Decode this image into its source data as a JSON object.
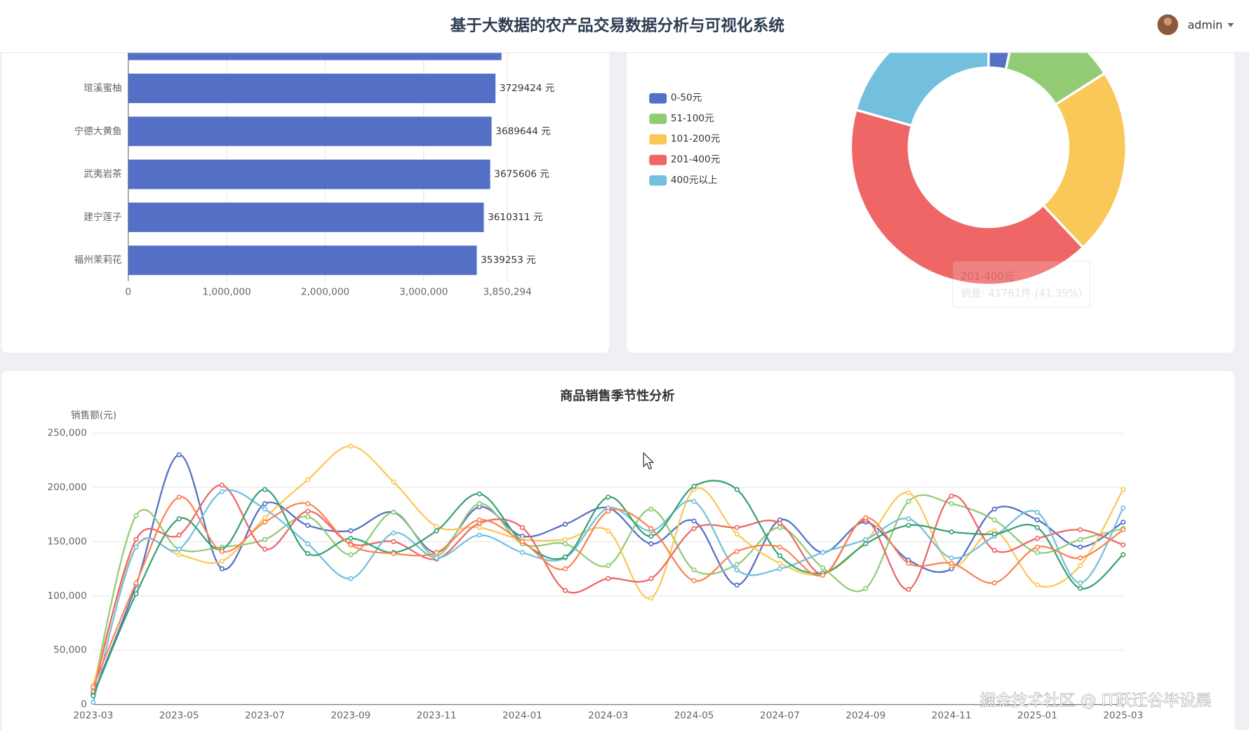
{
  "header": {
    "title": "基于大数据的农产品交易数据分析与可视化系统",
    "user": "admin"
  },
  "chart_data": [
    {
      "type": "bar",
      "orientation": "horizontal",
      "categories": [
        null,
        "琯溪蜜柚",
        "宁德大黄鱼",
        "武夷岩茶",
        "建宁莲子",
        "福州茉莉花"
      ],
      "values": [
        3790000,
        3729424,
        3689644,
        3675606,
        3610311,
        3539253
      ],
      "value_labels": [
        null,
        "3729424 元",
        "3689644 元",
        "3675606 元",
        "3610311 元",
        "3539253 元"
      ],
      "color": "#5470c6",
      "xlim": [
        0,
        3850294
      ],
      "xticks": [
        0,
        {
          "value": 1000000,
          "label": "1,000,000"
        },
        {
          "value": 2000000,
          "label": "2,000,000"
        },
        {
          "value": 3000000,
          "label": "3,000,000"
        },
        {
          "value": 3850294,
          "label": "3,850,294"
        }
      ],
      "grid": true
    },
    {
      "type": "pie",
      "donut": true,
      "categories": [
        "0-50元",
        "51-100元",
        "101-200元",
        "201-400元",
        "400元以上"
      ],
      "values": [
        3500,
        12600,
        22200,
        41761,
        20800
      ],
      "colors": [
        "#5470c6",
        "#91cc75",
        "#fac858",
        "#ee6666",
        "#73c0de"
      ],
      "legend": "left",
      "tooltip": "销量: 41761件 (41.39%)"
    },
    {
      "type": "line",
      "title": "商品销售季节性分析",
      "ylabel": "销售额(元)",
      "smooth": true,
      "grid": true,
      "x": [
        "2023-03",
        null,
        "2023-05",
        null,
        "2023-07",
        null,
        "2023-09",
        null,
        "2023-11",
        null,
        "2024-01",
        null,
        "2024-03",
        null,
        "2024-05",
        null,
        "2024-07",
        null,
        "2024-09",
        null,
        "2024-11",
        null,
        "2025-01",
        null,
        "2025-03"
      ],
      "ylim": [
        0,
        250000
      ],
      "yticks": [
        0,
        {
          "value": 50000,
          "label": "50,000"
        },
        {
          "value": 100000,
          "label": "100,000"
        },
        {
          "value": 150000,
          "label": "150,000"
        },
        {
          "value": 200000,
          "label": "200,000"
        },
        {
          "value": 250000,
          "label": "250,000"
        }
      ],
      "series": [
        {
          "color": "#5470c6",
          "values": [
            10000,
            110000,
            230000,
            125000,
            185000,
            165000,
            160000,
            177000,
            140000,
            182000,
            155000,
            166000,
            181000,
            148000,
            169000,
            110000,
            170000,
            140000,
            168000,
            133000,
            125000,
            180000,
            170000,
            145000,
            168000
          ]
        },
        {
          "color": "#91cc75",
          "values": [
            15000,
            174000,
            143000,
            145000,
            152000,
            173000,
            138000,
            177000,
            137000,
            185000,
            148000,
            148000,
            128000,
            180000,
            124000,
            129000,
            163000,
            126000,
            107000,
            187000,
            185000,
            170000,
            140000,
            152000,
            162000
          ]
        },
        {
          "color": "#fac858",
          "values": [
            18000,
            145000,
            138000,
            132000,
            172000,
            207000,
            238000,
            205000,
            164000,
            163000,
            152000,
            152000,
            160000,
            98000,
            198000,
            157000,
            130000,
            120000,
            150000,
            195000,
            128000,
            160000,
            110000,
            128000,
            198000
          ]
        },
        {
          "color": "#ee6666",
          "values": [
            12000,
            152000,
            156000,
            202000,
            143000,
            178000,
            148000,
            150000,
            134000,
            167000,
            163000,
            105000,
            116000,
            116000,
            162000,
            163000,
            167000,
            120000,
            170000,
            106000,
            192000,
            142000,
            153000,
            161000,
            147000
          ]
        },
        {
          "color": "#73c0de",
          "values": [
            2000,
            145000,
            143000,
            196000,
            180000,
            148000,
            116000,
            158000,
            135000,
            156000,
            140000,
            135000,
            181000,
            160000,
            187000,
            124000,
            125000,
            140000,
            152000,
            171000,
            135000,
            155000,
            177000,
            112000,
            181000
          ]
        },
        {
          "color": "#3ba272",
          "values": [
            8000,
            102000,
            171000,
            143000,
            198000,
            139000,
            153000,
            140000,
            160000,
            194000,
            150000,
            136000,
            191000,
            155000,
            201000,
            198000,
            137000,
            121000,
            148000,
            165000,
            159000,
            157000,
            163000,
            107000,
            138000
          ]
        },
        {
          "color": "#fc8452",
          "values": [
            16000,
            112000,
            191000,
            141000,
            168000,
            185000,
            147000,
            139000,
            140000,
            170000,
            150000,
            125000,
            178000,
            162000,
            114000,
            141000,
            145000,
            119000,
            172000,
            130000,
            130000,
            112000,
            145000,
            135000,
            161000
          ]
        }
      ]
    }
  ],
  "watermark": [
    "掘金技术社区 @ IT跃迁谷毕设展"
  ]
}
